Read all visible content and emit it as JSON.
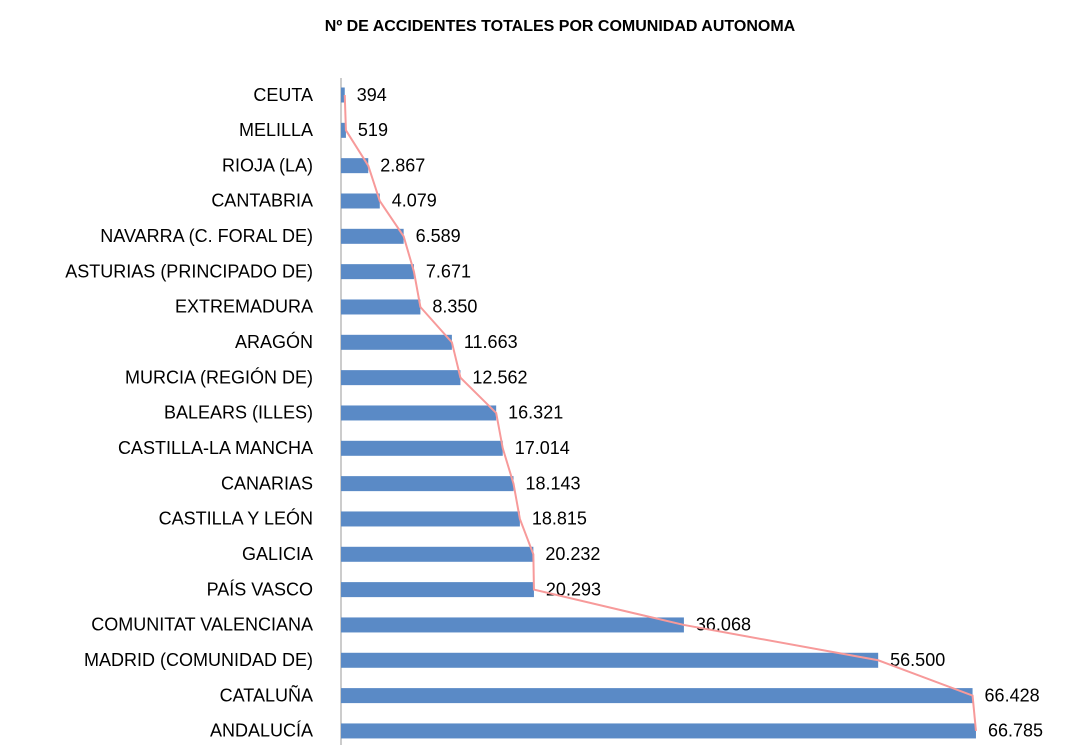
{
  "chart_data": {
    "type": "bar",
    "orientation": "horizontal",
    "title": "Nº DE ACCIDENTES TOTALES POR COMUNIDAD AUTONOMA",
    "categories": [
      "CEUTA",
      "MELILLA",
      "RIOJA (LA)",
      "CANTABRIA",
      "NAVARRA (C. FORAL DE)",
      "ASTURIAS (PRINCIPADO DE)",
      "EXTREMADURA",
      "ARAGÓN",
      "MURCIA (REGIÓN DE)",
      "BALEARS (ILLES)",
      "CASTILLA-LA MANCHA",
      "CANARIAS",
      "CASTILLA Y LEÓN",
      "GALICIA",
      "PAÍS VASCO",
      "COMUNITAT VALENCIANA",
      "MADRID (COMUNIDAD DE)",
      "CATALUÑA",
      "ANDALUCÍA"
    ],
    "values": [
      394,
      519,
      2867,
      4079,
      6589,
      7671,
      8350,
      11663,
      12562,
      16321,
      17014,
      18143,
      18815,
      20232,
      20293,
      36068,
      56500,
      66428,
      66785
    ],
    "value_labels": [
      "394",
      "519",
      "2.867",
      "4.079",
      "6.589",
      "7.671",
      "8.350",
      "11.663",
      "12.562",
      "16.321",
      "17.014",
      "18.143",
      "18.815",
      "20.232",
      "20.293",
      "36.068",
      "56.500",
      "66.428",
      "66.785"
    ],
    "color": "#5a8ac6",
    "line_color": "#f79a9a",
    "trend_line": true,
    "xlim": [
      0,
      67000
    ]
  }
}
